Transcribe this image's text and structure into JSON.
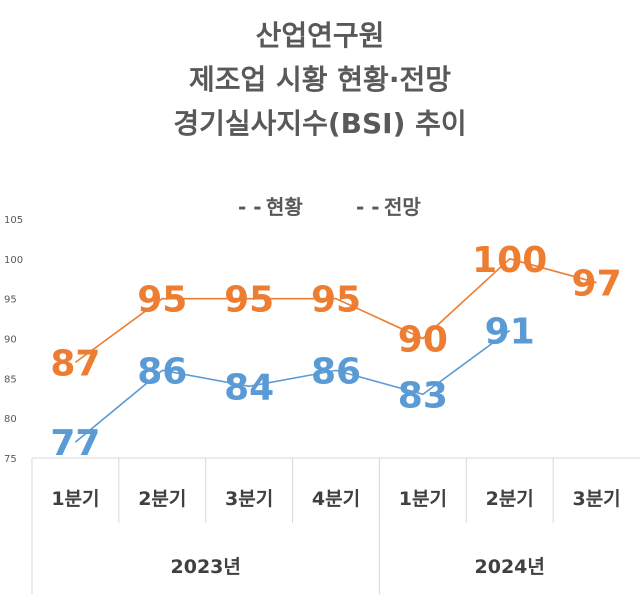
{
  "colors": {
    "current": "#5b9bd5",
    "outlook": "#ed7d31",
    "text": "#595959",
    "grid": "#d9d9d9"
  },
  "chart_data": {
    "type": "line",
    "title": [
      "산업연구원",
      "제조업 시황 현황·전망",
      "경기실사지수(BSI) 추이"
    ],
    "categories": [
      "1분기",
      "2분기",
      "3분기",
      "4분기",
      "1분기",
      "2분기",
      "3분기"
    ],
    "groups": [
      {
        "label": "2023년",
        "span": 4
      },
      {
        "label": "2024년",
        "span": 3
      }
    ],
    "series": [
      {
        "name": "현황",
        "color": "#5b9bd5",
        "values": [
          77,
          86,
          84,
          86,
          83,
          91,
          null
        ]
      },
      {
        "name": "전망",
        "color": "#ed7d31",
        "values": [
          87,
          95,
          95,
          95,
          90,
          100,
          97
        ]
      }
    ],
    "yticks": [
      75,
      80,
      85,
      90,
      95,
      100,
      105
    ],
    "ylim": [
      75,
      105
    ],
    "legend": {
      "position": "top",
      "dash": "- -"
    },
    "grid": false
  }
}
